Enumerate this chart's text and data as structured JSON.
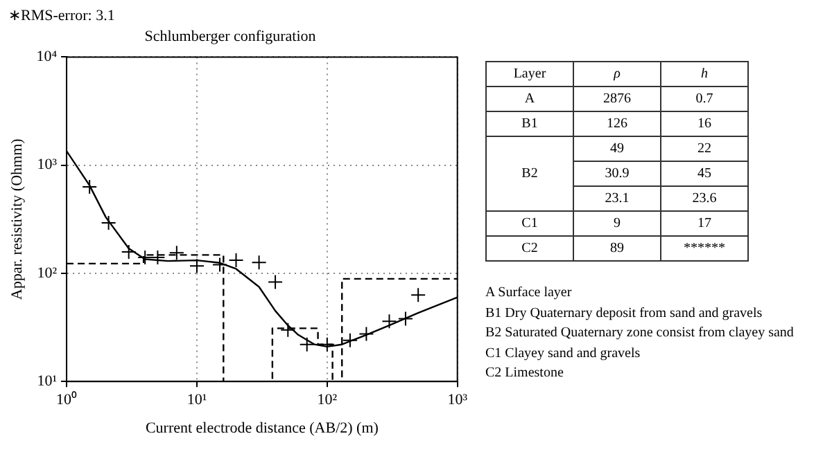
{
  "chart_data": [
    {
      "type": "scatter",
      "title": "Schlumberger configuration",
      "xlabel": "Current electrode distance (AB/2) (m)",
      "ylabel": "Appar. resistivity (Ohmm)",
      "annotations": [
        "∗RMS-error: 3.1"
      ],
      "log": "xy",
      "grid": true,
      "legend": false,
      "xlim": [
        1,
        1000
      ],
      "xticks": [
        {
          "value": 1,
          "label": "10⁰"
        },
        {
          "value": 10,
          "label": "10¹"
        },
        {
          "value": 100,
          "label": "10²"
        },
        {
          "value": 1000,
          "label": "10³"
        }
      ],
      "ylim": [
        10,
        10000
      ],
      "yticks": [
        {
          "value": 10,
          "label": "10¹"
        },
        {
          "value": 100,
          "label": "10²"
        },
        {
          "value": 1000,
          "label": "10³"
        },
        {
          "value": 10000,
          "label": "10⁴"
        }
      ],
      "series": [
        {
          "marker": "cross",
          "color": "#000000",
          "x": [
            1.5,
            2.1,
            3,
            4,
            5,
            7,
            10,
            15,
            20,
            30,
            40,
            50,
            70,
            100,
            150,
            200,
            300,
            400,
            500
          ],
          "values": [
            630,
            293,
            158,
            140,
            140,
            155,
            117,
            120,
            132,
            126,
            83,
            30,
            22,
            22,
            24,
            27.5,
            36,
            38,
            63
          ]
        },
        {
          "type": "line",
          "marker": "none",
          "color": "#000000",
          "line_style": "solid",
          "x": [
            1,
            1.5,
            2,
            3,
            4,
            6,
            10,
            15,
            20,
            30,
            40,
            50,
            60,
            80,
            100,
            130,
            200,
            300,
            500,
            1000
          ],
          "values": [
            1350,
            650,
            330,
            170,
            135,
            130,
            132,
            125,
            110,
            75,
            45,
            33,
            27,
            22,
            21,
            22,
            27,
            33,
            43,
            60
          ]
        },
        {
          "type": "line",
          "marker": "none",
          "color": "#000000",
          "line_style": "dashed",
          "x": [
            1,
            3.9,
            3.9,
            16,
            16,
            38,
            38,
            85,
            85,
            110,
            110,
            130,
            130,
            1000
          ],
          "values": [
            123,
            123,
            148,
            148,
            10,
            10,
            31,
            31,
            22,
            22,
            10,
            10,
            89,
            89
          ]
        }
      ]
    },
    {
      "type": "other",
      "ylabel": "Layer",
      "categories": [
        "ρ",
        "h"
      ],
      "y_categories": [
        "A",
        "B1",
        "B2",
        null,
        null,
        "C1",
        "C2"
      ],
      "cell_labels": [
        [
          "2876",
          "0.7"
        ],
        [
          "126",
          "16"
        ],
        [
          "49",
          "22"
        ],
        [
          "30.9",
          "45"
        ],
        [
          "23.1",
          "23.6"
        ],
        [
          "9",
          "17"
        ],
        [
          "89",
          "******"
        ]
      ],
      "annotations": [
        "A Surface layer",
        "B1 Dry Quaternary deposit from sand and gravels",
        "B2 Saturated Quaternary zone consist from clayey sand",
        "C1 Clayey sand and gravels",
        "C2 Limestone"
      ]
    }
  ]
}
